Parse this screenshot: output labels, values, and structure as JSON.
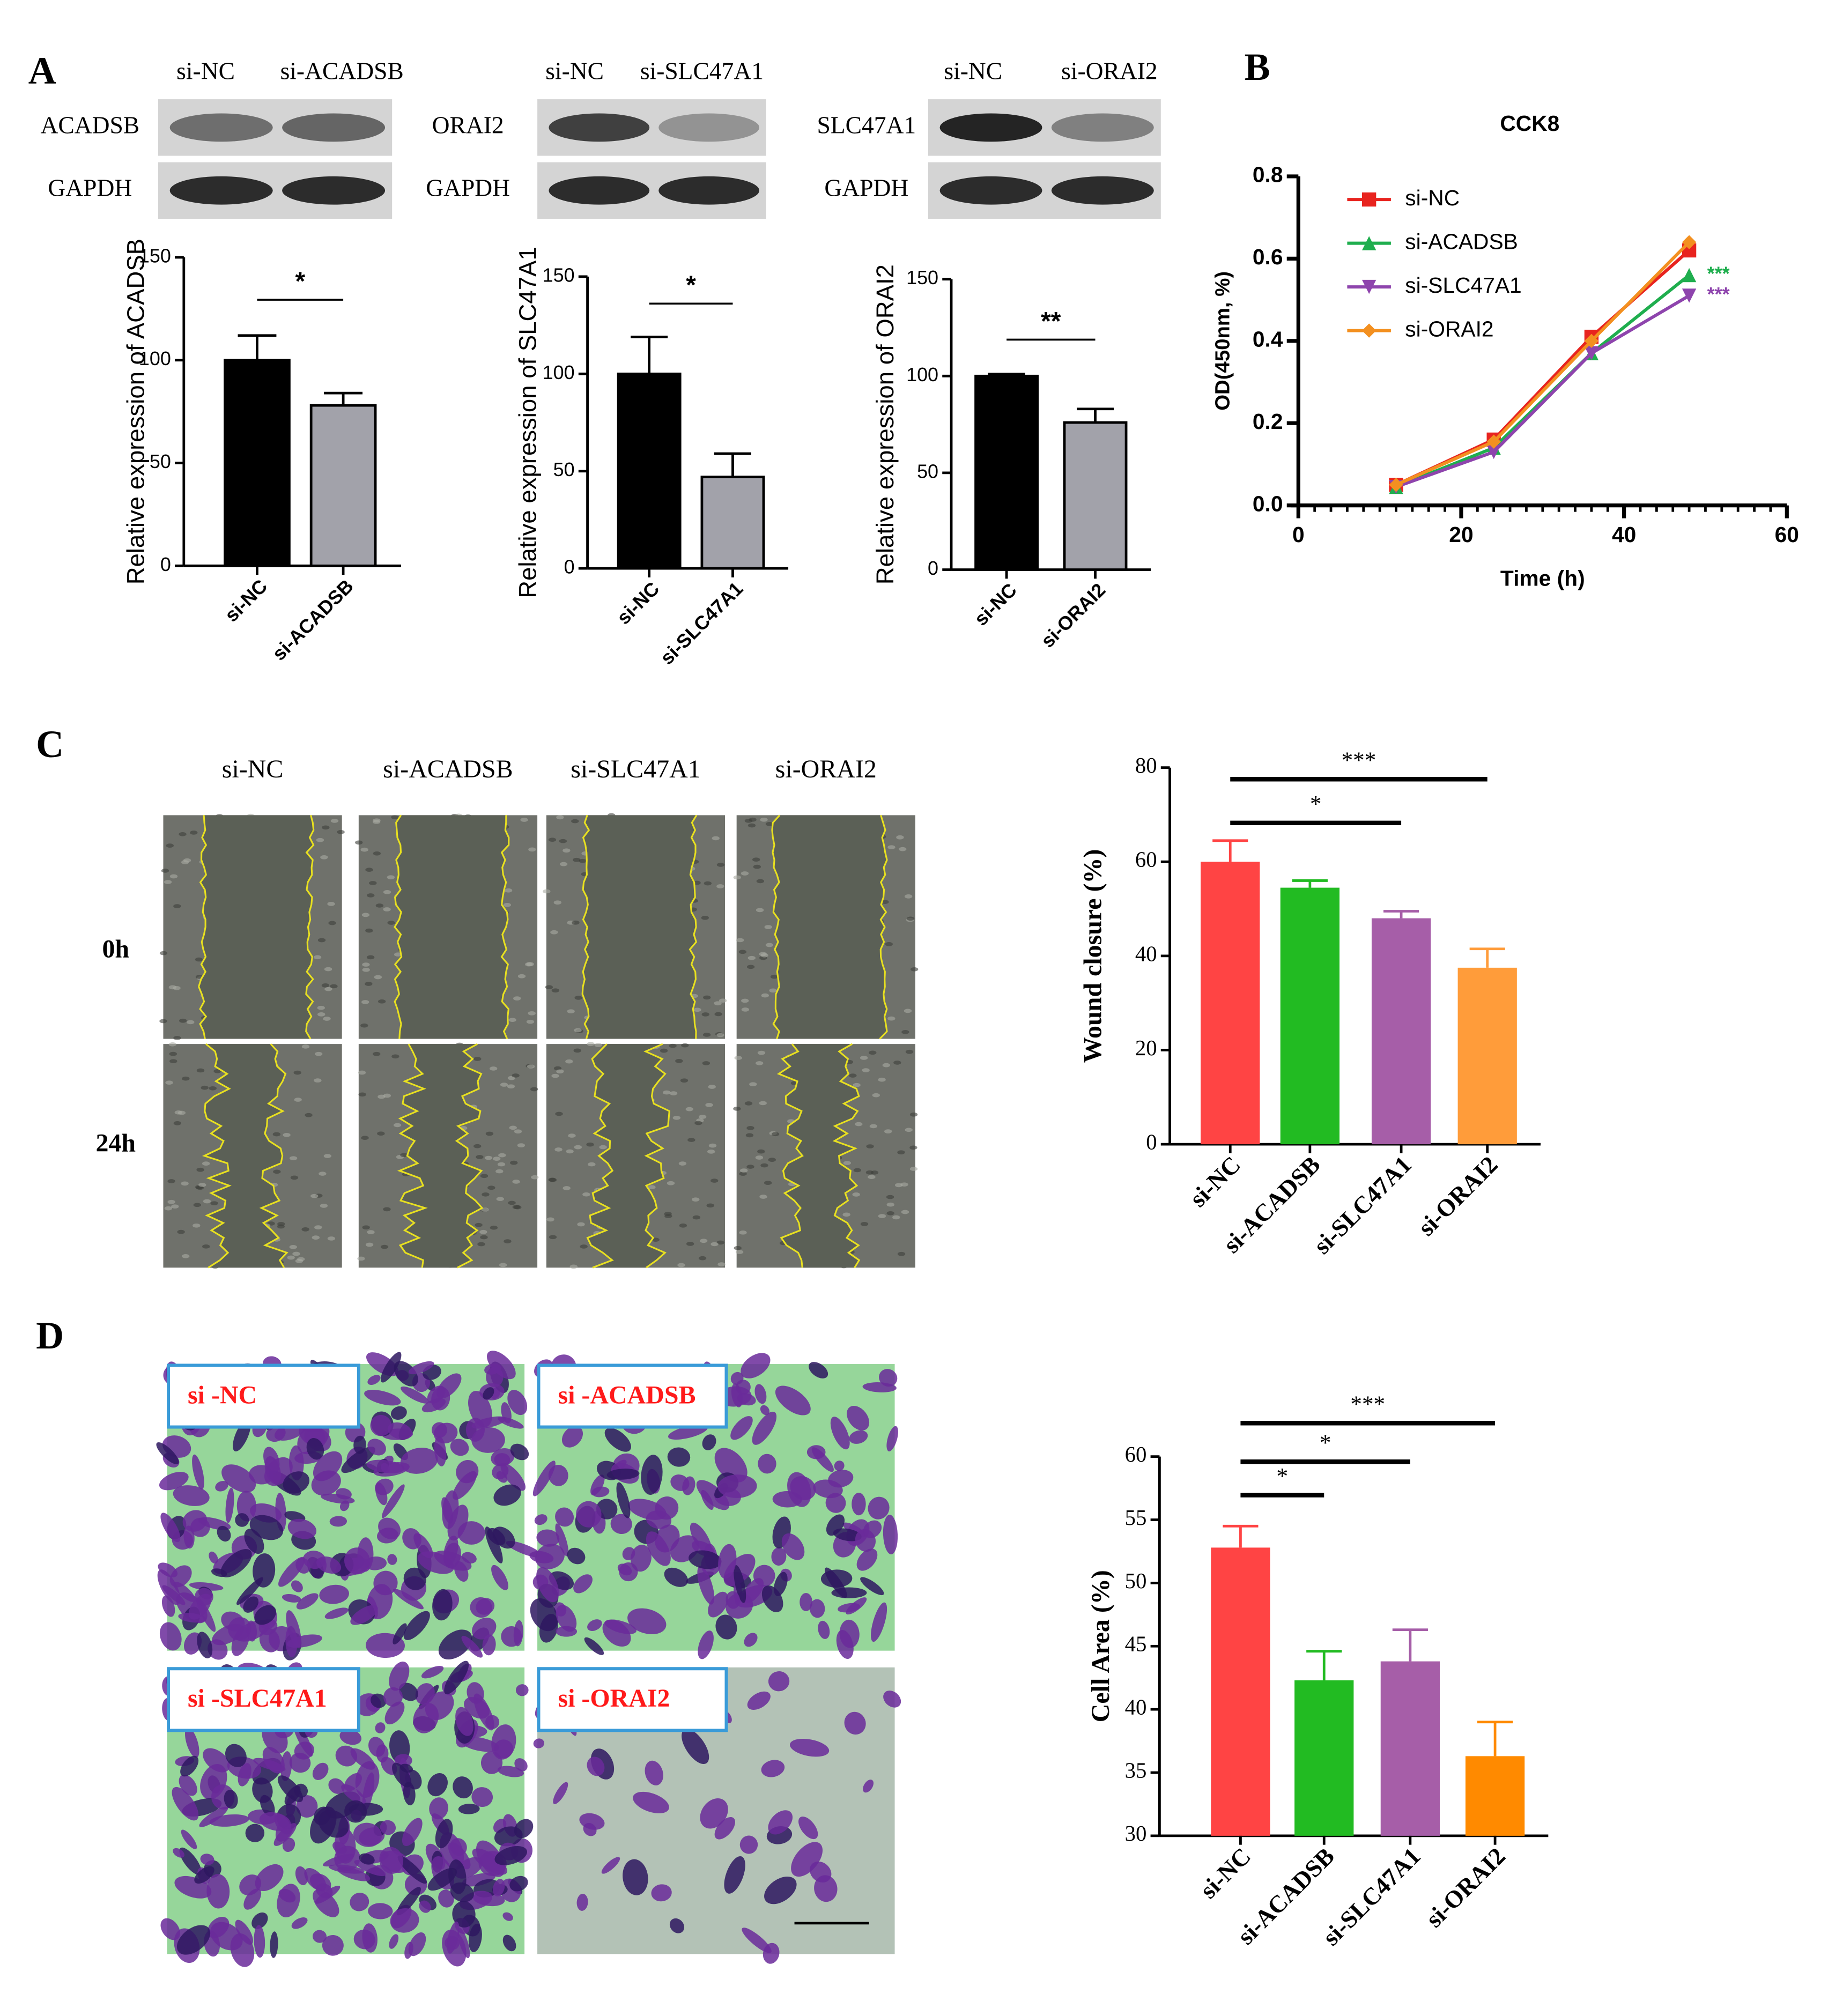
{
  "panel_labels": [
    "A",
    "B",
    "C",
    "D"
  ],
  "blots": [
    {
      "lanes": [
        "si-NC",
        "si-ACADSB"
      ],
      "proteins": [
        "ACADSB",
        "GAPDH"
      ]
    },
    {
      "lanes": [
        "si-NC",
        "si-SLC47A1"
      ],
      "proteins": [
        "ORAI2",
        "GAPDH"
      ]
    },
    {
      "lanes": [
        "si-NC",
        "si-ORAI2"
      ],
      "proteins": [
        "SLC47A1",
        "GAPDH"
      ]
    }
  ],
  "wound_images": {
    "columns": [
      "si-NC",
      "si-ACADSB",
      "si-SLC47A1",
      "si-ORAI2"
    ],
    "rows": [
      "0h",
      "24h"
    ]
  },
  "transwell_images": {
    "labels": [
      "si -NC",
      "si -ACADSB",
      "si -SLC47A1",
      "si -ORAI2"
    ]
  },
  "chart_data": [
    {
      "type": "bar",
      "ylabel": "Relative expression of ACADSB",
      "categories": [
        "si-NC",
        "si-ACADSB"
      ],
      "values": [
        100,
        78
      ],
      "errors": [
        12,
        6
      ],
      "colors": [
        "#000000",
        "#a2a2aa"
      ],
      "ylim": [
        0,
        150
      ],
      "yticks": [
        0,
        50,
        100,
        150
      ],
      "comparisons": [
        {
          "from": 0,
          "to": 1,
          "label": "*"
        }
      ]
    },
    {
      "type": "bar",
      "ylabel": "Relative expression of SLC47A1",
      "categories": [
        "si-NC",
        "si-SLC47A1"
      ],
      "values": [
        100,
        47
      ],
      "errors": [
        19,
        12
      ],
      "colors": [
        "#000000",
        "#a2a2aa"
      ],
      "ylim": [
        0,
        150
      ],
      "yticks": [
        0,
        50,
        100,
        150
      ],
      "comparisons": [
        {
          "from": 0,
          "to": 1,
          "label": "*"
        }
      ]
    },
    {
      "type": "bar",
      "ylabel": "Relative expression of ORAI2",
      "categories": [
        "si-NC",
        "si-ORAI2"
      ],
      "values": [
        100,
        76
      ],
      "errors": [
        1,
        7
      ],
      "colors": [
        "#000000",
        "#a2a2aa"
      ],
      "ylim": [
        0,
        150
      ],
      "yticks": [
        0,
        50,
        100,
        150
      ],
      "comparisons": [
        {
          "from": 0,
          "to": 1,
          "label": "**"
        }
      ]
    },
    {
      "type": "line",
      "title": "CCK8",
      "xlabel": "Time (h)",
      "ylabel": "OD(450nm, %)",
      "x": [
        12,
        24,
        36,
        48
      ],
      "series": [
        {
          "name": "si-NC",
          "color": "#e8241f",
          "marker": "square",
          "values": [
            0.05,
            0.16,
            0.41,
            0.62
          ]
        },
        {
          "name": "si-ACADSB",
          "color": "#1fae4e",
          "marker": "triangle",
          "values": [
            0.045,
            0.14,
            0.37,
            0.56
          ]
        },
        {
          "name": "si-SLC47A1",
          "color": "#8e44ad",
          "marker": "triangle-down",
          "values": [
            0.045,
            0.13,
            0.37,
            0.51
          ]
        },
        {
          "name": "si-ORAI2",
          "color": "#f39020",
          "marker": "diamond",
          "values": [
            0.05,
            0.155,
            0.4,
            0.64
          ]
        }
      ],
      "xlim": [
        0,
        60
      ],
      "xticks": [
        0,
        20,
        40,
        60
      ],
      "ylim": [
        0,
        0.8
      ],
      "yticks": [
        {
          "value": 0,
          "label": "0.0"
        },
        0.2,
        0.4,
        0.6,
        0.8
      ],
      "annotations": [
        {
          "label": "***",
          "series": 1
        },
        {
          "label": "***",
          "series": 2
        }
      ]
    },
    {
      "type": "bar",
      "ylabel": "Wound closure (%)",
      "categories": [
        "si-NC",
        "si-ACADSB",
        "si-SLC47A1",
        "si-ORAI2"
      ],
      "values": [
        60,
        54.5,
        48,
        37.5
      ],
      "errors": [
        4.5,
        1.5,
        1.5,
        4
      ],
      "colors": [
        "#ff4444",
        "#22bb22",
        "#a65ea8",
        "#ff9c3a"
      ],
      "ylim": [
        0,
        80
      ],
      "yticks": [
        0,
        20,
        40,
        60,
        80
      ],
      "comparisons": [
        {
          "from": 0,
          "to": 3,
          "label": "***"
        },
        {
          "from": 0,
          "to": 2,
          "label": "*"
        }
      ]
    },
    {
      "type": "bar",
      "ylabel": "Cell Area (%)",
      "categories": [
        "si-NC",
        "si-ACADSB",
        "si-SLC47A1",
        "si-ORAI2"
      ],
      "values": [
        52.8,
        42.3,
        43.8,
        36.3
      ],
      "errors": [
        1.7,
        2.3,
        2.5,
        2.7
      ],
      "colors": [
        "#ff4444",
        "#22bb22",
        "#a65ea8",
        "#ff8a00"
      ],
      "ylim": [
        30,
        60
      ],
      "yticks": [
        30,
        35,
        40,
        45,
        50,
        55,
        60
      ],
      "comparisons": [
        {
          "from": 0,
          "to": 3,
          "label": "***"
        },
        {
          "from": 0,
          "to": 2,
          "label": "*"
        },
        {
          "from": 0,
          "to": 1,
          "label": "*"
        }
      ]
    }
  ]
}
